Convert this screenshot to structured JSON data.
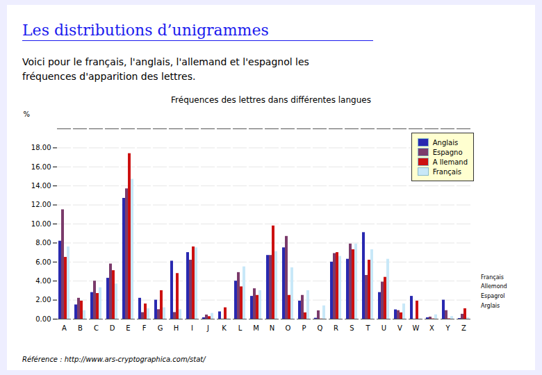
{
  "chart_data": {
    "type": "bar",
    "title": "Fréquences des lettres dans différentes langues",
    "subtitle": "Voici pour le français, l'anglais, l'allemand et l'espagnol les\nfréquences d'apparition des lettres.",
    "ylabel": "%",
    "annotations": [
      "Les distributions d’unigrammes",
      "Référence :  http://www.ars-cryptographica.com/stat/",
      "Français",
      "Allemond",
      "Espagrol",
      "Arglais"
    ],
    "categories": [
      "A",
      "B",
      "C",
      "D",
      "E",
      "F",
      "G",
      "H",
      "I",
      "J",
      "K",
      "L",
      "M",
      "N",
      "O",
      "P",
      "Q",
      "R",
      "S",
      "T",
      "U",
      "V",
      "W",
      "X",
      "Y",
      "Z"
    ],
    "series": [
      {
        "name": "Anglais",
        "color": "#2929B0",
        "values": [
          8.2,
          1.5,
          2.8,
          4.3,
          12.7,
          2.2,
          2.0,
          6.1,
          7.0,
          0.15,
          0.77,
          4.0,
          2.4,
          6.7,
          7.5,
          1.9,
          0.1,
          6.0,
          6.3,
          9.1,
          2.8,
          0.98,
          2.4,
          0.15,
          2.0,
          0.07
        ]
      },
      {
        "name": "Espagno",
        "color": "#7B3B6B",
        "values": [
          11.5,
          2.2,
          4.0,
          5.8,
          13.7,
          0.69,
          1.0,
          0.7,
          6.2,
          0.44,
          0.01,
          4.9,
          3.2,
          6.7,
          8.7,
          2.5,
          0.88,
          6.9,
          7.9,
          4.6,
          3.9,
          0.9,
          0.01,
          0.22,
          0.9,
          0.52
        ]
      },
      {
        "name": "A llemand",
        "color": "#CC1111",
        "values": [
          6.5,
          1.9,
          2.7,
          5.1,
          17.4,
          1.6,
          3.0,
          4.8,
          7.6,
          0.27,
          1.2,
          3.4,
          2.5,
          9.8,
          2.5,
          0.67,
          0.02,
          7.0,
          7.3,
          6.2,
          4.4,
          0.67,
          1.9,
          0.03,
          0.04,
          1.1
        ]
      },
      {
        "name": "Français",
        "color": "#C8E8F8",
        "values": [
          7.6,
          0.9,
          3.3,
          3.7,
          14.7,
          1.1,
          1.2,
          1.0,
          7.5,
          0.61,
          0.05,
          5.5,
          3.0,
          7.1,
          5.4,
          3.0,
          1.4,
          6.6,
          7.9,
          7.3,
          6.3,
          1.6,
          0.04,
          0.46,
          0.28,
          0.15
        ]
      }
    ],
    "ylim": [
      0,
      20
    ],
    "yticks": [
      {
        "value": 0,
        "label": "0.00"
      },
      {
        "value": 2,
        "label": "2.00"
      },
      {
        "value": 4,
        "label": "4.00"
      },
      {
        "value": 6,
        "label": "6.00"
      },
      {
        "value": 8,
        "label": "8.00"
      },
      {
        "value": 10,
        "label": "10.00"
      },
      {
        "value": 12,
        "label": "12.00"
      },
      {
        "value": 14,
        "label": "14.00"
      },
      {
        "value": 16,
        "label": "16.00"
      },
      {
        "value": 18,
        "label": "18.00"
      }
    ],
    "grid": true,
    "legend": "upper right"
  }
}
